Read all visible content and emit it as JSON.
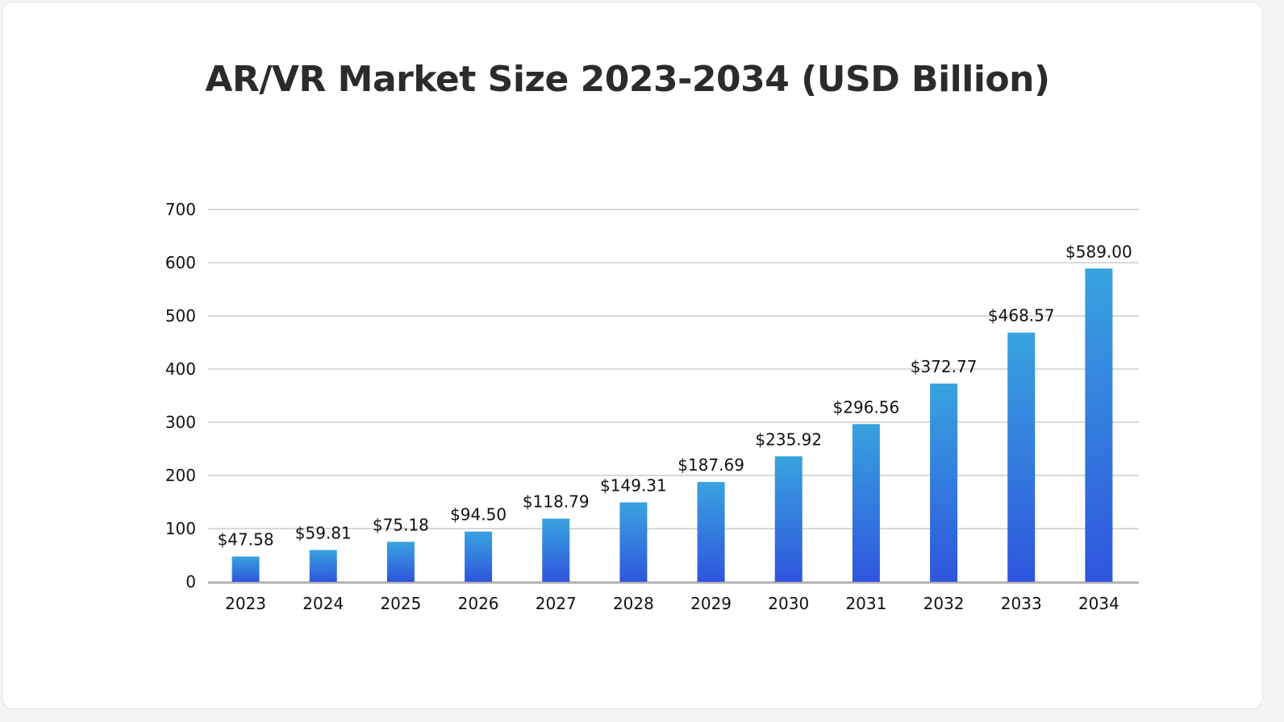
{
  "chart_data": {
    "type": "bar",
    "title": "AR/VR Market Size 2023-2034 (USD Billion)",
    "xlabel": "",
    "ylabel": "",
    "categories": [
      "2023",
      "2024",
      "2025",
      "2026",
      "2027",
      "2028",
      "2029",
      "2030",
      "2031",
      "2032",
      "2033",
      "2034"
    ],
    "values": [
      47.58,
      59.81,
      75.18,
      94.5,
      118.79,
      149.31,
      187.69,
      235.92,
      296.56,
      372.77,
      468.57,
      589.0
    ],
    "data_labels": [
      "$47.58",
      "$59.81",
      "$75.18",
      "$94.50",
      "$118.79",
      "$149.31",
      "$187.69",
      "$235.92",
      "$296.56",
      "$372.77",
      "$468.57",
      "$589.00"
    ],
    "ylim": [
      0,
      700
    ],
    "yticks": [
      0,
      100,
      200,
      300,
      400,
      500,
      600,
      700
    ],
    "grid": true,
    "legend": "none",
    "colors": {
      "bar_top": "#38a3df",
      "bar_bottom": "#2f55de",
      "grid": "#d9d9d9",
      "axis": "#b0b0b0"
    }
  }
}
